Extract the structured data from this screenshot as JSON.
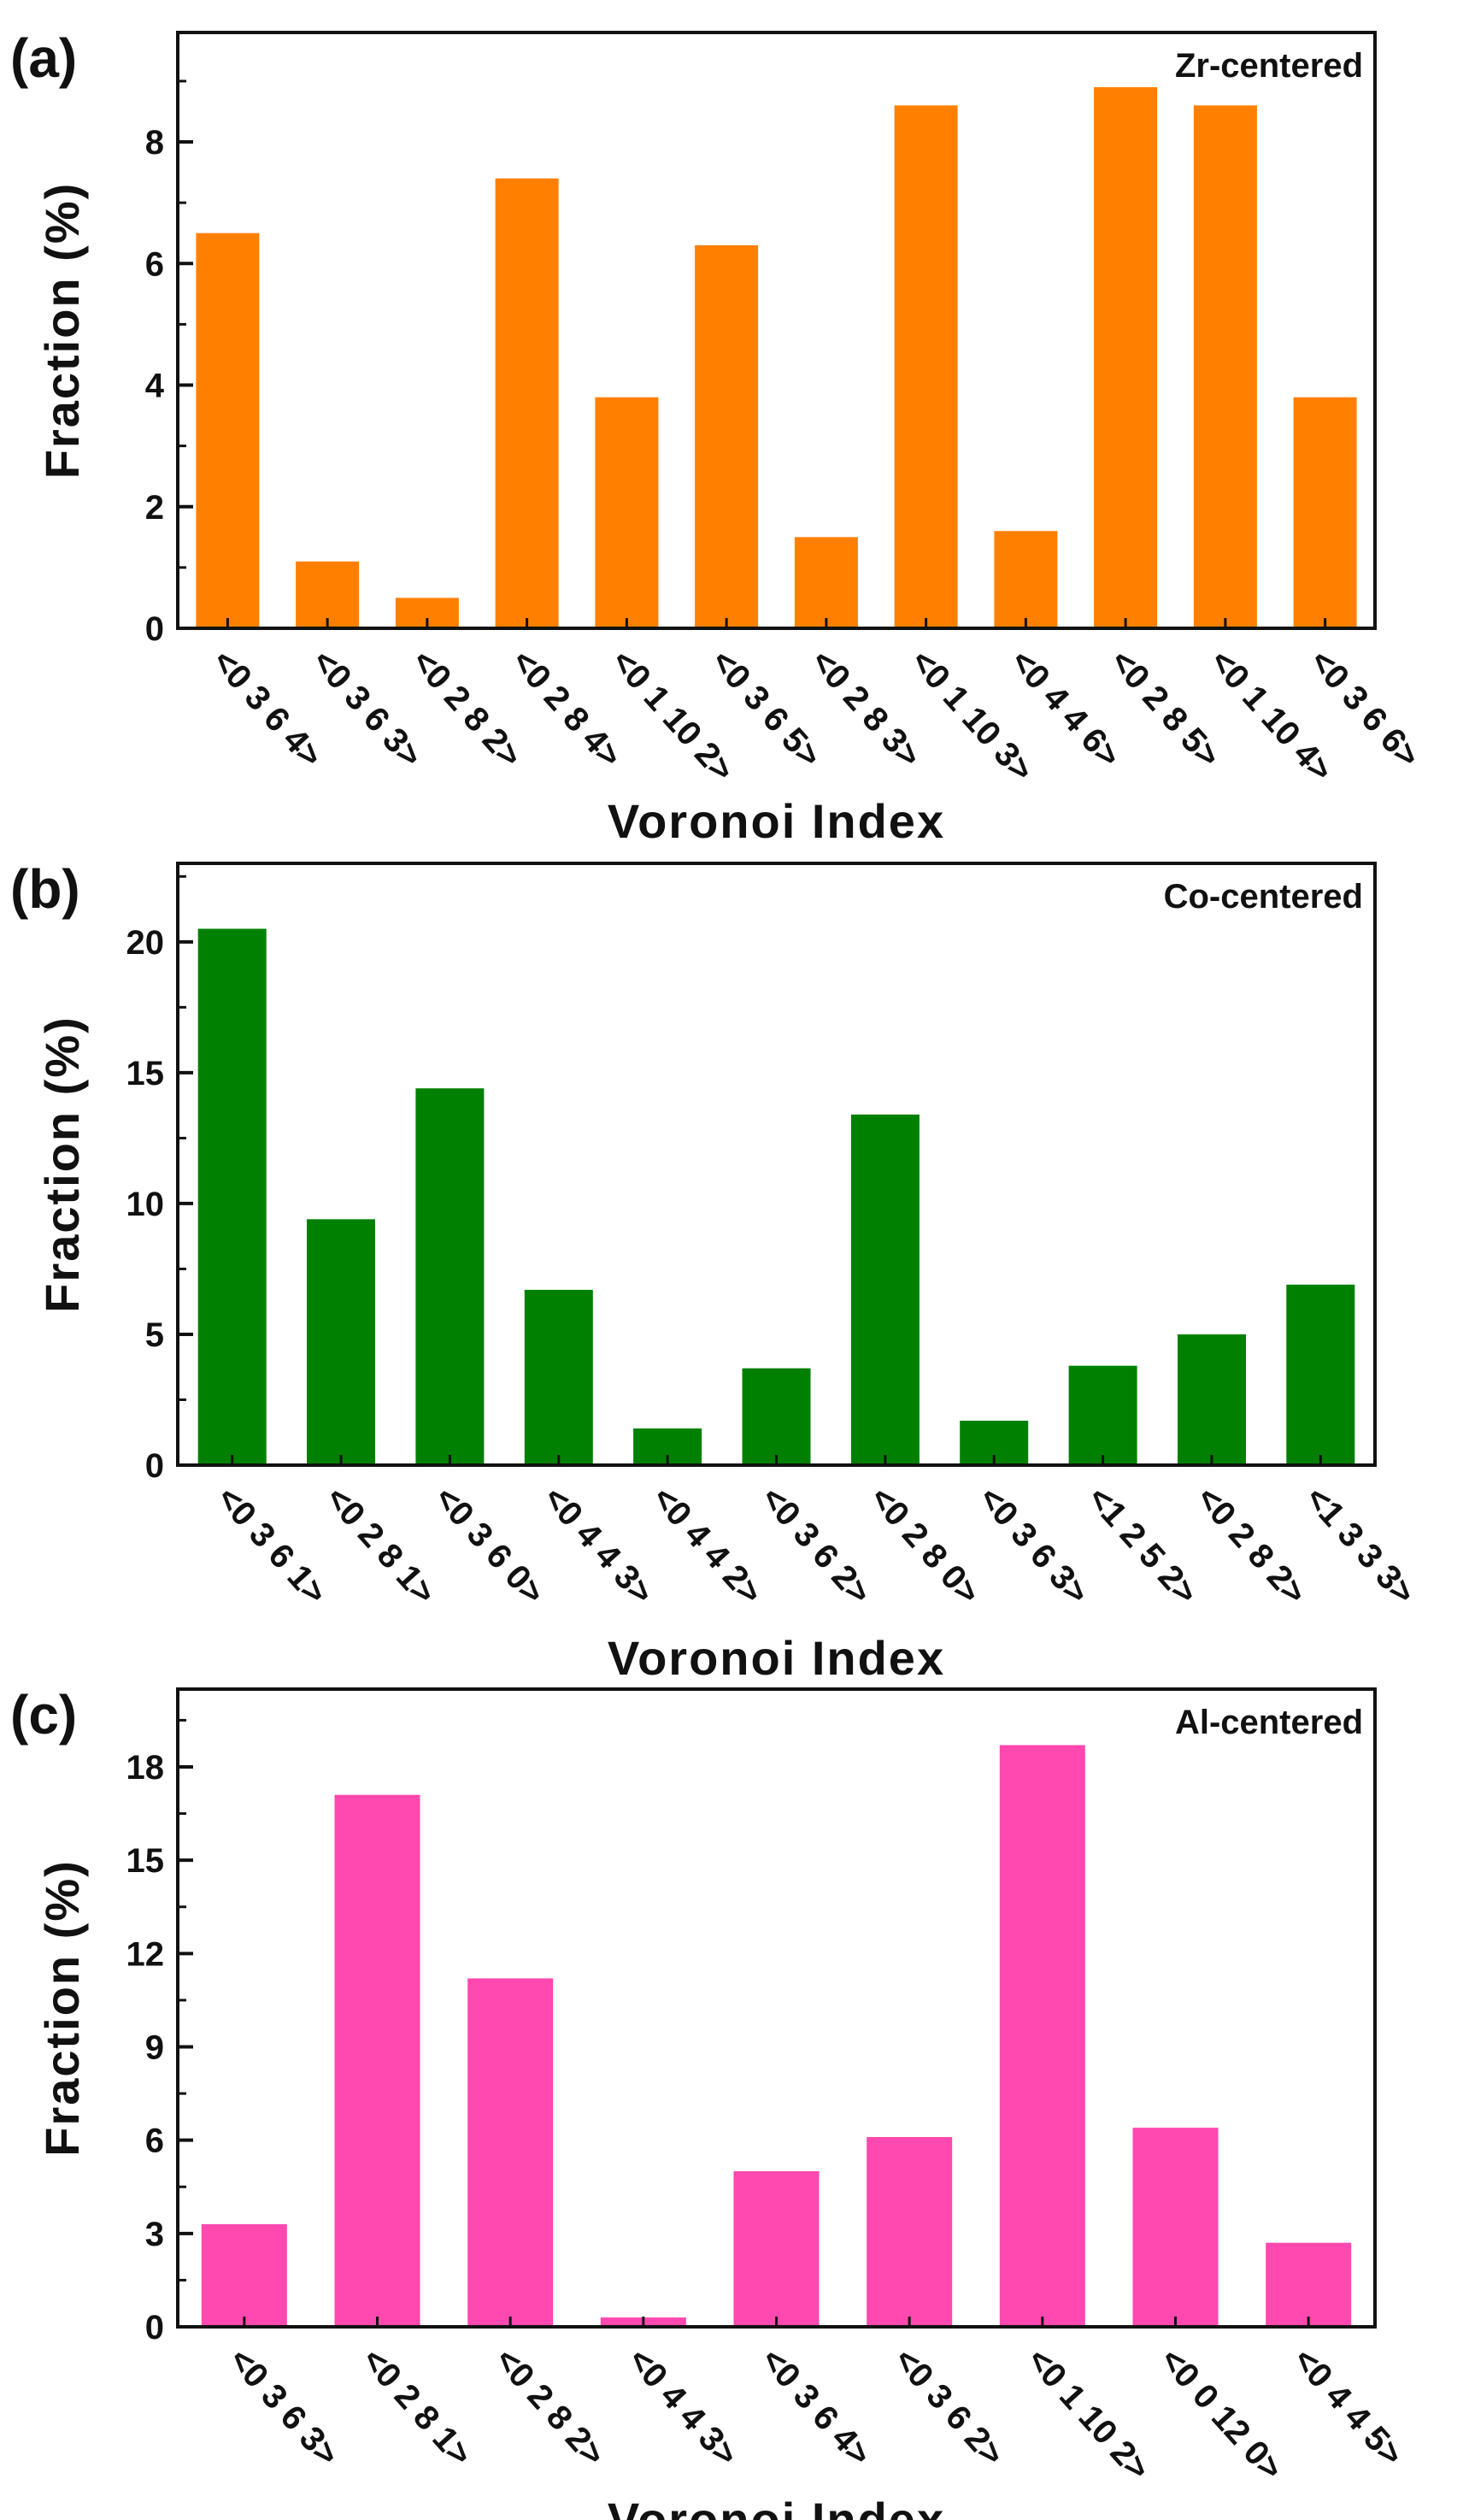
{
  "figure": {
    "x_axis_label": "Voronoi Index",
    "y_axis_label": "Fraction (%)"
  },
  "chart_data": [
    {
      "type": "bar",
      "panel_label": "(a)",
      "annotation": "Zr-centered",
      "xlabel": "Voronoi Index",
      "ylabel": "Fraction (%)",
      "color": "#FF8000",
      "ylim": [
        0,
        9.8
      ],
      "yticks": [
        0,
        2,
        4,
        6,
        8
      ],
      "categories": [
        "<0 3 6 4>",
        "<0 3 6 3>",
        "<0 2 8 2>",
        "<0 2 8 4>",
        "<0 1 10 2>",
        "<0 3 6 5>",
        "<0 2 8 3>",
        "<0 1 10 3>",
        "<0 4 4 6>",
        "<0 2 8 5>",
        "<0 1 10 4>",
        "<0 3 6 6>"
      ],
      "values": [
        6.5,
        1.1,
        0.5,
        7.4,
        3.8,
        6.3,
        1.5,
        8.6,
        1.6,
        8.9,
        8.6,
        3.8
      ]
    },
    {
      "type": "bar",
      "panel_label": "(b)",
      "annotation": "Co-centered",
      "xlabel": "Voronoi Index",
      "ylabel": "Fraction (%)",
      "color": "#008000",
      "ylim": [
        0,
        23
      ],
      "yticks": [
        0,
        5,
        10,
        15,
        20
      ],
      "categories": [
        "<0 3 6 1>",
        "<0 2 8 1>",
        "<0 3 6 0>",
        "<0 4 4 3>",
        "<0 4 4 2>",
        "<0 3 6 2>",
        "<0 2 8 0>",
        "<0 3 6 3>",
        "<1 2 5 2>",
        "<0 2 8 2>",
        "<1 3 3 3>"
      ],
      "values": [
        20.5,
        9.4,
        14.4,
        6.7,
        1.4,
        3.7,
        13.4,
        1.7,
        3.8,
        5.0,
        6.9
      ]
    },
    {
      "type": "bar",
      "panel_label": "(c)",
      "annotation": "Al-centered",
      "xlabel": "Voronoi Index",
      "ylabel": "Fraction (%)",
      "color": "#FF48B0",
      "ylim": [
        0,
        20.5
      ],
      "yticks": [
        0,
        3,
        6,
        9,
        12,
        15,
        18
      ],
      "categories": [
        "<0 3 6 3>",
        "<0 2 8 1>",
        "<0 2 8 2>",
        "<0 4 4 3>",
        "<0 3 6 4>",
        "<0 3 6 2>",
        "<0 1 10 2>",
        "<0 0 12 0>",
        "<0 4 4 5>"
      ],
      "values": [
        3.3,
        17.1,
        11.2,
        0.3,
        5.0,
        6.1,
        18.7,
        6.4,
        2.7
      ]
    }
  ]
}
